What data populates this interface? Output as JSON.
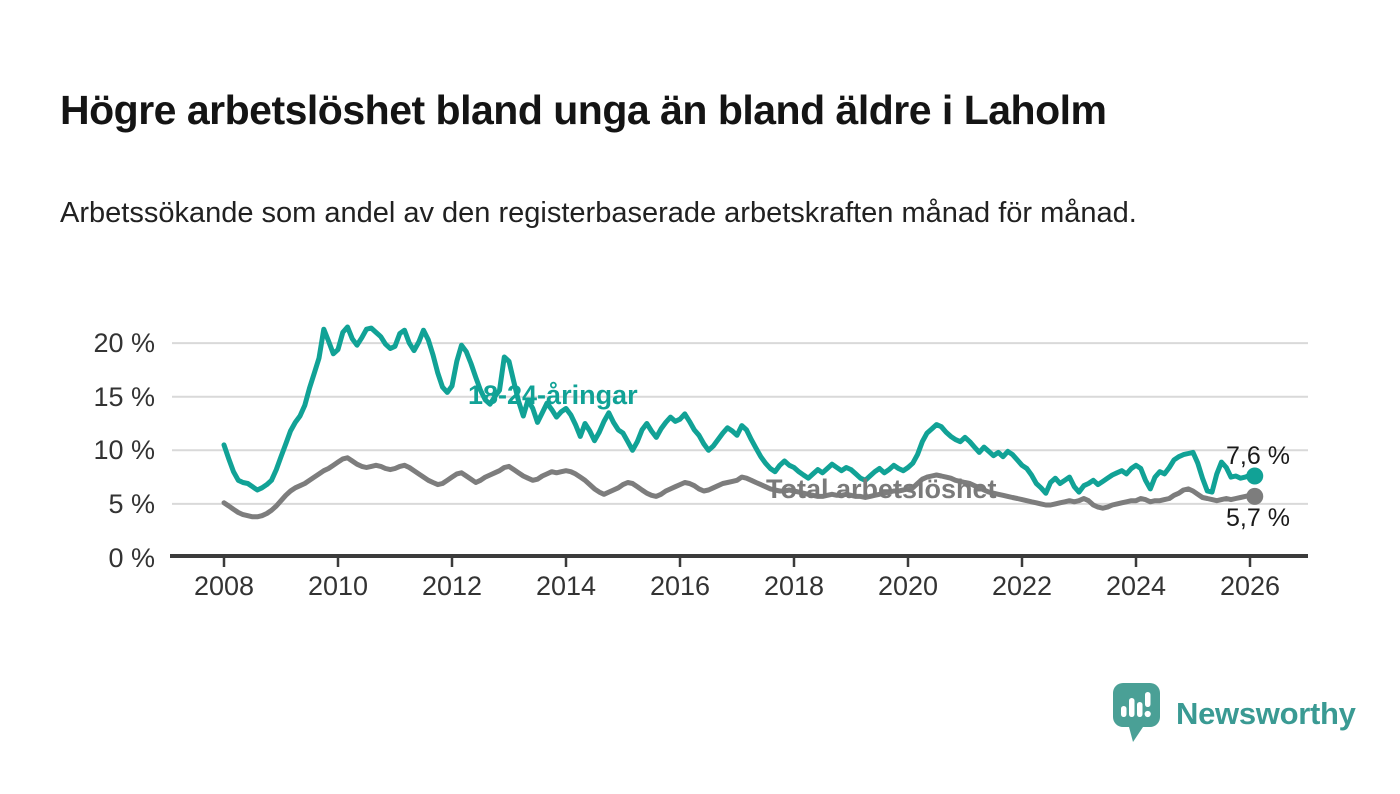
{
  "header": {
    "title": "Högre arbetslöshet bland unga än bland äldre i Laholm",
    "subtitle": "Arbetssökande som andel av den registerbaserade arbetskraften månad för månad."
  },
  "colors": {
    "young_line": "#11a296",
    "total_line": "#7d7d7d",
    "gridline": "#d9d9d9",
    "axis": "#3b3b3b",
    "tick_text": "#333333",
    "end_label_text": "#1a1a1a",
    "logo_mark": "#4aa096",
    "logo_text": "#3a9a93"
  },
  "chart_data": {
    "type": "line",
    "title": "Högre arbetslöshet bland unga än bland äldre i Laholm",
    "subtitle": "Arbetssökande som andel av den registerbaserade arbetskraften månad för månad.",
    "x_unit": "month",
    "x_start": "2008-01",
    "x_end": "2026-02",
    "xtick_years": [
      2008,
      2010,
      2012,
      2014,
      2016,
      2018,
      2020,
      2022,
      2024,
      2026
    ],
    "xtick_labels": [
      "2008",
      "2010",
      "2012",
      "2014",
      "2016",
      "2018",
      "2020",
      "2022",
      "2024",
      "2026"
    ],
    "ytick_values": [
      20,
      15,
      10,
      5,
      0
    ],
    "ytick_labels": [
      "20 %",
      "15 %",
      "10 %",
      "5 %",
      "0 %"
    ],
    "ylim": [
      0,
      22
    ],
    "grid": "horizontal",
    "legend_position": "inline-labels",
    "series": [
      {
        "name": "18-24-åringar",
        "color": "#11a296",
        "end_value": 7.6,
        "end_label": "7,6 %",
        "values": [
          10.5,
          9.2,
          8.0,
          7.2,
          7.0,
          6.9,
          6.6,
          6.3,
          6.5,
          6.8,
          7.2,
          8.2,
          9.4,
          10.6,
          11.8,
          12.6,
          13.2,
          14.2,
          15.8,
          17.2,
          18.6,
          21.3,
          20.2,
          19.0,
          19.4,
          21.0,
          21.5,
          20.4,
          19.8,
          20.5,
          21.3,
          21.4,
          21.0,
          20.6,
          19.9,
          19.5,
          19.7,
          20.9,
          21.2,
          20.0,
          19.3,
          20.1,
          21.2,
          20.3,
          18.9,
          17.2,
          15.9,
          15.4,
          16.0,
          18.3,
          19.8,
          19.2,
          18.1,
          16.8,
          15.6,
          14.7,
          14.3,
          15.0,
          15.6,
          18.7,
          18.3,
          16.4,
          14.6,
          13.2,
          14.7,
          13.9,
          12.6,
          13.5,
          14.4,
          13.8,
          13.1,
          13.6,
          13.9,
          13.3,
          12.4,
          11.3,
          12.5,
          11.8,
          10.9,
          11.7,
          12.7,
          13.5,
          12.6,
          11.9,
          11.6,
          10.8,
          10.0,
          10.8,
          11.9,
          12.5,
          11.8,
          11.2,
          12.0,
          12.6,
          13.1,
          12.7,
          12.9,
          13.4,
          12.7,
          11.9,
          11.4,
          10.6,
          10.0,
          10.4,
          11.0,
          11.6,
          12.1,
          11.8,
          11.4,
          12.3,
          11.9,
          11.0,
          10.2,
          9.4,
          8.8,
          8.3,
          8.0,
          8.6,
          9.0,
          8.6,
          8.4,
          8.0,
          7.7,
          7.4,
          7.8,
          8.2,
          7.9,
          8.3,
          8.7,
          8.4,
          8.1,
          8.4,
          8.2,
          7.8,
          7.4,
          7.2,
          7.6,
          8.0,
          8.3,
          7.9,
          8.2,
          8.6,
          8.3,
          8.1,
          8.4,
          8.8,
          9.6,
          10.8,
          11.6,
          12.0,
          12.4,
          12.2,
          11.7,
          11.3,
          11.0,
          10.8,
          11.2,
          10.8,
          10.3,
          9.8,
          10.3,
          9.9,
          9.5,
          9.8,
          9.4,
          9.9,
          9.6,
          9.1,
          8.6,
          8.3,
          7.7,
          6.9,
          6.5,
          6.0,
          7.0,
          7.4,
          6.9,
          7.2,
          7.5,
          6.6,
          6.1,
          6.7,
          6.9,
          7.2,
          6.8,
          7.1,
          7.4,
          7.7,
          7.9,
          8.1,
          7.8,
          8.3,
          8.6,
          8.3,
          7.2,
          6.4,
          7.5,
          8.0,
          7.8,
          8.4,
          9.1,
          9.4,
          9.6,
          9.7,
          9.8,
          8.8,
          7.4,
          6.2,
          6.1,
          7.8,
          8.9,
          8.4,
          7.5,
          7.6,
          7.4,
          7.5,
          7.7,
          7.6
        ]
      },
      {
        "name": "Total arbetslöshet",
        "color": "#7d7d7d",
        "end_value": 5.7,
        "end_label": "5,7 %",
        "values": [
          5.1,
          4.8,
          4.5,
          4.2,
          4.0,
          3.9,
          3.8,
          3.8,
          3.9,
          4.1,
          4.4,
          4.8,
          5.3,
          5.8,
          6.2,
          6.5,
          6.7,
          6.9,
          7.2,
          7.5,
          7.8,
          8.1,
          8.3,
          8.6,
          8.9,
          9.2,
          9.3,
          9.0,
          8.7,
          8.5,
          8.4,
          8.5,
          8.6,
          8.5,
          8.3,
          8.2,
          8.3,
          8.5,
          8.6,
          8.4,
          8.1,
          7.8,
          7.5,
          7.2,
          7.0,
          6.8,
          6.9,
          7.2,
          7.5,
          7.8,
          7.9,
          7.6,
          7.3,
          7.0,
          7.2,
          7.5,
          7.7,
          7.9,
          8.1,
          8.4,
          8.5,
          8.2,
          7.9,
          7.6,
          7.4,
          7.2,
          7.3,
          7.6,
          7.8,
          8.0,
          7.9,
          8.0,
          8.1,
          8.0,
          7.8,
          7.5,
          7.2,
          6.8,
          6.4,
          6.1,
          5.9,
          6.1,
          6.3,
          6.5,
          6.8,
          7.0,
          6.9,
          6.6,
          6.3,
          6.0,
          5.8,
          5.7,
          5.9,
          6.2,
          6.4,
          6.6,
          6.8,
          7.0,
          6.9,
          6.7,
          6.4,
          6.2,
          6.3,
          6.5,
          6.7,
          6.9,
          7.0,
          7.1,
          7.2,
          7.5,
          7.4,
          7.2,
          7.0,
          6.8,
          6.6,
          6.4,
          6.3,
          6.2,
          6.2,
          6.3,
          6.2,
          6.1,
          6.0,
          5.9,
          5.8,
          5.7,
          5.7,
          5.8,
          5.9,
          5.8,
          5.8,
          5.9,
          5.8,
          5.7,
          5.7,
          5.6,
          5.7,
          5.8,
          5.9,
          6.0,
          6.1,
          6.2,
          6.2,
          6.3,
          6.4,
          6.5,
          6.9,
          7.3,
          7.5,
          7.6,
          7.7,
          7.6,
          7.5,
          7.4,
          7.2,
          7.1,
          7.0,
          6.9,
          6.7,
          6.5,
          6.3,
          6.1,
          6.0,
          5.9,
          5.8,
          5.7,
          5.6,
          5.5,
          5.4,
          5.3,
          5.2,
          5.1,
          5.0,
          4.9,
          4.9,
          5.0,
          5.1,
          5.2,
          5.3,
          5.2,
          5.3,
          5.5,
          5.3,
          4.9,
          4.7,
          4.6,
          4.7,
          4.9,
          5.0,
          5.1,
          5.2,
          5.3,
          5.3,
          5.5,
          5.4,
          5.2,
          5.3,
          5.3,
          5.4,
          5.5,
          5.8,
          6.0,
          6.3,
          6.4,
          6.2,
          5.9,
          5.6,
          5.5,
          5.4,
          5.3,
          5.4,
          5.5,
          5.4,
          5.5,
          5.6,
          5.7,
          5.8,
          5.7
        ]
      }
    ]
  },
  "annotations": {
    "young_series_label": "18-24-åringar",
    "total_series_label": "Total arbetslöshet",
    "young_end_label": "7,6 %",
    "total_end_label": "5,7 %"
  },
  "logo": {
    "name": "Newsworthy",
    "icon": "bar-chart-speech-bubble-icon"
  }
}
